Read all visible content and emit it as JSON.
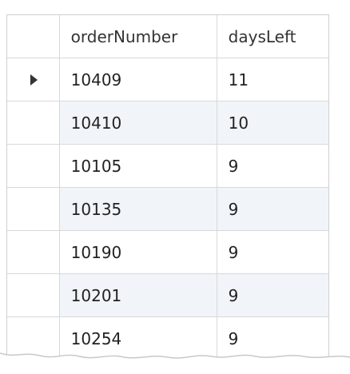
{
  "grid": {
    "columns": [
      "orderNumber",
      "daysLeft"
    ],
    "rows": [
      {
        "orderNumber": "10409",
        "daysLeft": "11",
        "current": true
      },
      {
        "orderNumber": "10410",
        "daysLeft": "10",
        "current": false
      },
      {
        "orderNumber": "10105",
        "daysLeft": "9",
        "current": false
      },
      {
        "orderNumber": "10135",
        "daysLeft": "9",
        "current": false
      },
      {
        "orderNumber": "10190",
        "daysLeft": "9",
        "current": false
      },
      {
        "orderNumber": "10201",
        "daysLeft": "9",
        "current": false
      },
      {
        "orderNumber": "10254",
        "daysLeft": "9",
        "current": false
      }
    ],
    "colors": {
      "row_alt": "#f1f5f9",
      "border": "#d8d8d8",
      "text": "#222222"
    },
    "current_row_icon": "row-pointer-icon"
  }
}
